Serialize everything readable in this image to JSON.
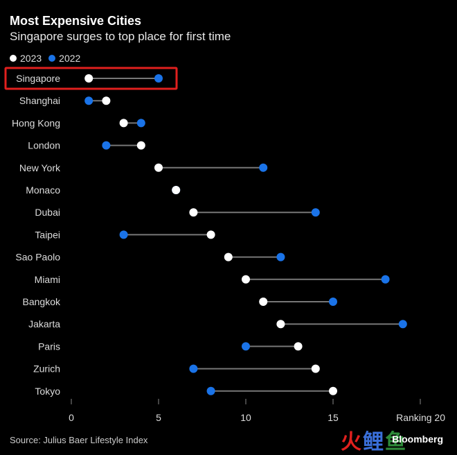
{
  "header": {
    "title": "Most Expensive Cities",
    "subtitle": "Singapore surges to top place for first time"
  },
  "legend": [
    {
      "label": "2023",
      "color": "#ffffff"
    },
    {
      "label": "2022",
      "color": "#1a73e8"
    }
  ],
  "chart_data": {
    "type": "dumbbell",
    "title": "Most Expensive Cities",
    "subtitle": "Singapore surges to top place for first time",
    "xlabel": "Ranking",
    "xlim": [
      0,
      20
    ],
    "xticks": [
      0,
      5,
      10,
      15,
      20
    ],
    "grid": false,
    "legend_position": "top-left",
    "highlight": "Singapore",
    "colors": {
      "2023": "#ffffff",
      "2022": "#1a73e8",
      "highlight": "#e0201e",
      "connector": "#777777"
    },
    "categories": [
      "Singapore",
      "Shanghai",
      "Hong Kong",
      "London",
      "New York",
      "Monaco",
      "Dubai",
      "Taipei",
      "Sao Paolo",
      "Miami",
      "Bangkok",
      "Jakarta",
      "Paris",
      "Zurich",
      "Tokyo"
    ],
    "series": [
      {
        "name": "2023",
        "values": [
          1,
          2,
          3,
          4,
          5,
          6,
          7,
          8,
          9,
          10,
          11,
          12,
          13,
          14,
          15
        ]
      },
      {
        "name": "2022",
        "values": [
          5,
          1,
          4,
          2,
          11,
          6,
          14,
          3,
          12,
          18,
          15,
          19,
          10,
          7,
          8
        ]
      }
    ]
  },
  "footer": {
    "source": "Source: Julius Baer Lifestyle Index",
    "brand": "Bloomberg",
    "watermark": "火鲤鱼"
  }
}
